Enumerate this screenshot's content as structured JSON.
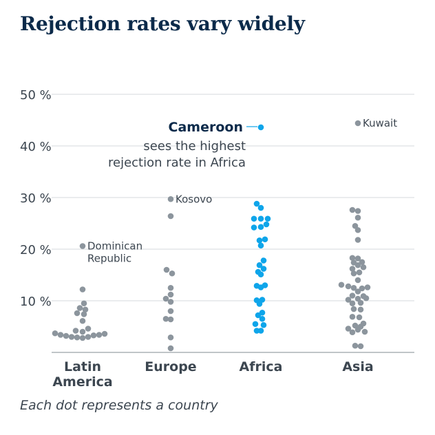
{
  "title": "Rejection rates vary widely",
  "footnote": "Each dot represents a country",
  "colors": {
    "gray": "#8c959d",
    "highlight": "#0ea5ea",
    "title": "#0b2a4a",
    "grid": "#d6dadd",
    "text": "#3c4650"
  },
  "annotation": {
    "bold": "Cameroon",
    "line1": "sees the highest",
    "line2": "rejection rate in Africa"
  },
  "chart_data": {
    "type": "scatter",
    "title": "Rejection rates vary widely",
    "xlabel": "",
    "ylabel": "",
    "ylim": [
      0,
      50
    ],
    "yticks": [
      10,
      20,
      30,
      40,
      50
    ],
    "ytick_labels": [
      "10 %",
      "20 %",
      "30 %",
      "40 %",
      "50 %"
    ],
    "grid": true,
    "categories": [
      {
        "name": "Latin America",
        "label_lines": [
          "Latin",
          "America"
        ],
        "highlight": false,
        "points": [
          {
            "dx": 0,
            "y": 20.6,
            "label": "Dominican Republic",
            "label_lines": [
              "Dominican",
              "Republic"
            ]
          },
          {
            "dx": 0,
            "y": 12.2
          },
          {
            "dx": 2,
            "y": 9.5
          },
          {
            "dx": -4,
            "y": 8.6
          },
          {
            "dx": 4,
            "y": 8.3
          },
          {
            "dx": -8,
            "y": 7.6
          },
          {
            "dx": 2,
            "y": 7.4
          },
          {
            "dx": 0,
            "y": 6.1
          },
          {
            "dx": 8,
            "y": 4.6
          },
          {
            "dx": -10,
            "y": 4.2
          },
          {
            "dx": 0,
            "y": 4.0
          },
          {
            "dx": -40,
            "y": 3.7
          },
          {
            "dx": 32,
            "y": 3.6
          },
          {
            "dx": 24,
            "y": 3.4
          },
          {
            "dx": -32,
            "y": 3.4
          },
          {
            "dx": 16,
            "y": 3.3
          },
          {
            "dx": -24,
            "y": 3.2
          },
          {
            "dx": 8,
            "y": 3.0
          },
          {
            "dx": -16,
            "y": 3.0
          },
          {
            "dx": 0,
            "y": 2.8
          },
          {
            "dx": -8,
            "y": 2.9
          }
        ]
      },
      {
        "name": "Europe",
        "label_lines": [
          "Europe"
        ],
        "highlight": false,
        "points": [
          {
            "dx": 0,
            "y": 29.7,
            "label": "Kosovo"
          },
          {
            "dx": 0,
            "y": 26.4
          },
          {
            "dx": -6,
            "y": 16.0
          },
          {
            "dx": 2,
            "y": 15.3
          },
          {
            "dx": 0,
            "y": 12.5
          },
          {
            "dx": 0,
            "y": 11.2
          },
          {
            "dx": -7,
            "y": 10.4
          },
          {
            "dx": 0,
            "y": 9.8
          },
          {
            "dx": 0,
            "y": 8.0
          },
          {
            "dx": -7,
            "y": 6.5
          },
          {
            "dx": 0,
            "y": 6.4
          },
          {
            "dx": 0,
            "y": 2.9
          },
          {
            "dx": 0,
            "y": 0.8
          }
        ]
      },
      {
        "name": "Africa",
        "label_lines": [
          "Africa"
        ],
        "highlight": true,
        "points": [
          {
            "dx": 0,
            "y": 43.6,
            "label": "Cameroon"
          },
          {
            "dx": -6,
            "y": 28.8
          },
          {
            "dx": 0,
            "y": 28.0
          },
          {
            "dx": -10,
            "y": 25.9
          },
          {
            "dx": 0,
            "y": 25.9
          },
          {
            "dx": 10,
            "y": 25.9
          },
          {
            "dx": -10,
            "y": 24.2
          },
          {
            "dx": 0,
            "y": 24.3
          },
          {
            "dx": 8,
            "y": 24.8
          },
          {
            "dx": -2,
            "y": 21.7
          },
          {
            "dx": 6,
            "y": 21.9
          },
          {
            "dx": 0,
            "y": 20.7
          },
          {
            "dx": 4,
            "y": 17.8
          },
          {
            "dx": -2,
            "y": 16.9
          },
          {
            "dx": 4,
            "y": 16.2
          },
          {
            "dx": -4,
            "y": 15.6
          },
          {
            "dx": 0,
            "y": 15.1
          },
          {
            "dx": -6,
            "y": 12.9
          },
          {
            "dx": 6,
            "y": 13.0
          },
          {
            "dx": 0,
            "y": 12.6
          },
          {
            "dx": -6,
            "y": 10.1
          },
          {
            "dx": 2,
            "y": 10.2
          },
          {
            "dx": -2,
            "y": 9.4
          },
          {
            "dx": 2,
            "y": 7.7
          },
          {
            "dx": -4,
            "y": 7.2
          },
          {
            "dx": 2,
            "y": 6.5
          },
          {
            "dx": -8,
            "y": 5.5
          },
          {
            "dx": 4,
            "y": 5.3
          },
          {
            "dx": -6,
            "y": 4.2
          },
          {
            "dx": 0,
            "y": 4.2
          }
        ]
      },
      {
        "name": "Asia",
        "label_lines": [
          "Asia"
        ],
        "highlight": false,
        "points": [
          {
            "dx": 0,
            "y": 44.4,
            "label": "Kuwait"
          },
          {
            "dx": -8,
            "y": 27.6
          },
          {
            "dx": 0,
            "y": 27.4
          },
          {
            "dx": 0,
            "y": 26.1
          },
          {
            "dx": -4,
            "y": 24.5
          },
          {
            "dx": 0,
            "y": 23.7
          },
          {
            "dx": 0,
            "y": 21.8
          },
          {
            "dx": -8,
            "y": 18.3
          },
          {
            "dx": 0,
            "y": 18.2
          },
          {
            "dx": -6,
            "y": 17.4
          },
          {
            "dx": 6,
            "y": 17.5
          },
          {
            "dx": 0,
            "y": 16.9
          },
          {
            "dx": -8,
            "y": 16.2
          },
          {
            "dx": 8,
            "y": 16.5
          },
          {
            "dx": -6,
            "y": 15.3
          },
          {
            "dx": 2,
            "y": 15.5
          },
          {
            "dx": 0,
            "y": 14.0
          },
          {
            "dx": -24,
            "y": 13.1
          },
          {
            "dx": -14,
            "y": 12.8
          },
          {
            "dx": -6,
            "y": 12.5
          },
          {
            "dx": 6,
            "y": 12.4
          },
          {
            "dx": 14,
            "y": 12.6
          },
          {
            "dx": 0,
            "y": 11.8
          },
          {
            "dx": -8,
            "y": 11.0
          },
          {
            "dx": 8,
            "y": 10.9
          },
          {
            "dx": -14,
            "y": 10.2
          },
          {
            "dx": 0,
            "y": 10.4
          },
          {
            "dx": 12,
            "y": 10.5
          },
          {
            "dx": -8,
            "y": 9.5
          },
          {
            "dx": 4,
            "y": 9.6
          },
          {
            "dx": -6,
            "y": 8.4
          },
          {
            "dx": 4,
            "y": 8.3
          },
          {
            "dx": -8,
            "y": 6.9
          },
          {
            "dx": 2,
            "y": 6.8
          },
          {
            "dx": 8,
            "y": 5.6
          },
          {
            "dx": -4,
            "y": 5.2
          },
          {
            "dx": 4,
            "y": 5.0
          },
          {
            "dx": -14,
            "y": 4.6
          },
          {
            "dx": 0,
            "y": 4.4
          },
          {
            "dx": 10,
            "y": 4.0
          },
          {
            "dx": -8,
            "y": 3.9
          },
          {
            "dx": -4,
            "y": 1.3
          },
          {
            "dx": 4,
            "y": 1.2
          }
        ]
      }
    ]
  }
}
